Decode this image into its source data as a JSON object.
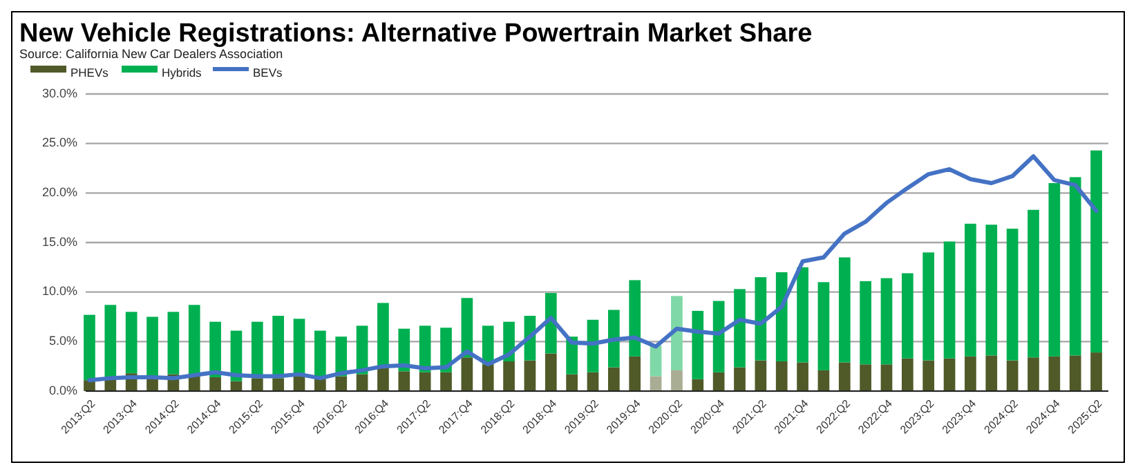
{
  "chart_data": {
    "type": "bar",
    "stacked": true,
    "title": "New Vehicle Registrations:  Alternative Powertrain Market Share",
    "annotations": [
      "Source:  California New Car Dealers Association"
    ],
    "categories": [
      "2013:Q2",
      null,
      "2013:Q4",
      null,
      "2014:Q2",
      null,
      "2014:Q4",
      null,
      "2015:Q2",
      null,
      "2015:Q4",
      null,
      "2016:Q2",
      null,
      "2016:Q4",
      null,
      "2017:Q2",
      null,
      "2017:Q4",
      null,
      "2018:Q2",
      null,
      "2018:Q4",
      null,
      "2019:Q2",
      null,
      "2019:Q4",
      null,
      "2020:Q2",
      null,
      "2020:Q4",
      null,
      "2021:Q2",
      null,
      "2021:Q4",
      null,
      "2022:Q2",
      null,
      "2022:Q4",
      null,
      "2023:Q2",
      null,
      "2023:Q4",
      null,
      "2024:Q2",
      null,
      "2024:Q4",
      null,
      "2025:Q2"
    ],
    "series": [
      {
        "name": "PHEVs",
        "color": "#4f5a28",
        "colors": [
          "#4f5a28",
          "#4f5a28",
          "#4f5a28",
          "#4f5a28",
          "#4f5a28",
          "#4f5a28",
          "#4f5a28",
          "#4f5a28",
          "#4f5a28",
          "#4f5a28",
          "#4f5a28",
          "#4f5a28",
          "#4f5a28",
          "#4f5a28",
          "#4f5a28",
          "#4f5a28",
          "#4f5a28",
          "#4f5a28",
          "#4f5a28",
          "#4f5a28",
          "#4f5a28",
          "#4f5a28",
          "#4f5a28",
          "#4f5a28",
          "#4f5a28",
          "#4f5a28",
          "#4f5a28",
          "#a9ad93",
          "#a9ad93",
          "#4f5a28",
          "#4f5a28",
          "#4f5a28",
          "#4f5a28",
          "#4f5a28",
          "#4f5a28",
          "#4f5a28",
          "#4f5a28",
          "#4f5a28",
          "#4f5a28",
          "#4f5a28",
          "#4f5a28",
          "#4f5a28",
          "#4f5a28",
          "#4f5a28",
          "#4f5a28",
          "#4f5a28",
          "#4f5a28",
          "#4f5a28",
          "#4f5a28"
        ],
        "values": [
          1.1,
          1.2,
          1.8,
          1.5,
          1.7,
          1.5,
          1.4,
          1.0,
          1.3,
          1.3,
          1.5,
          1.2,
          1.5,
          1.7,
          2.3,
          2.0,
          1.9,
          1.9,
          3.4,
          2.7,
          3.0,
          3.1,
          3.8,
          1.7,
          1.9,
          2.4,
          3.5,
          1.5,
          2.1,
          1.2,
          1.9,
          2.4,
          3.1,
          3.0,
          2.9,
          2.1,
          2.9,
          2.7,
          2.7,
          3.3,
          3.1,
          3.3,
          3.5,
          3.6,
          3.1,
          3.4,
          3.5,
          3.6,
          3.9
        ]
      },
      {
        "name": "Hybrids",
        "color": "#00b050",
        "colors": [
          "#00b050",
          "#00b050",
          "#00b050",
          "#00b050",
          "#00b050",
          "#00b050",
          "#00b050",
          "#00b050",
          "#00b050",
          "#00b050",
          "#00b050",
          "#00b050",
          "#00b050",
          "#00b050",
          "#00b050",
          "#00b050",
          "#00b050",
          "#00b050",
          "#00b050",
          "#00b050",
          "#00b050",
          "#00b050",
          "#00b050",
          "#00b050",
          "#00b050",
          "#00b050",
          "#00b050",
          "#7fd8a7",
          "#7fd8a7",
          "#00b050",
          "#00b050",
          "#00b050",
          "#00b050",
          "#00b050",
          "#00b050",
          "#00b050",
          "#00b050",
          "#00b050",
          "#00b050",
          "#00b050",
          "#00b050",
          "#00b050",
          "#00b050",
          "#00b050",
          "#00b050",
          "#00b050",
          "#00b050",
          "#00b050",
          "#00b050"
        ],
        "values": [
          6.6,
          7.5,
          6.2,
          6.0,
          6.3,
          7.2,
          5.6,
          5.1,
          5.7,
          6.3,
          5.8,
          4.9,
          4.0,
          4.9,
          6.6,
          4.3,
          4.7,
          4.5,
          6.0,
          3.9,
          4.0,
          4.5,
          6.1,
          3.8,
          5.3,
          5.8,
          7.7,
          3.1,
          7.5,
          6.9,
          7.2,
          7.9,
          8.4,
          9.0,
          9.6,
          8.9,
          10.6,
          8.4,
          8.7,
          8.6,
          10.9,
          11.8,
          13.4,
          13.2,
          13.3,
          14.9,
          17.5,
          18.0,
          20.4
        ]
      },
      {
        "name": "BEVs",
        "type": "line",
        "color": "#4472c4",
        "values": [
          1.1,
          1.3,
          1.4,
          1.4,
          1.3,
          1.6,
          1.9,
          1.6,
          1.5,
          1.5,
          1.7,
          1.3,
          1.8,
          2.1,
          2.5,
          2.6,
          2.3,
          2.4,
          4.0,
          2.7,
          3.7,
          5.5,
          7.4,
          4.9,
          4.8,
          5.2,
          5.4,
          4.5,
          6.3,
          6.0,
          5.8,
          7.2,
          6.8,
          8.5,
          13.1,
          13.5,
          15.9,
          17.1,
          19.0,
          20.5,
          21.9,
          22.4,
          21.4,
          21.0,
          21.7,
          23.7,
          21.3,
          20.8,
          18.2
        ]
      }
    ],
    "ylim": [
      0,
      30
    ],
    "yticks": [
      {
        "value": 0,
        "label": "0.0%"
      },
      {
        "value": 5,
        "label": "5.0%"
      },
      {
        "value": 10,
        "label": "10.0%"
      },
      {
        "value": 15,
        "label": "15.0%"
      },
      {
        "value": 20,
        "label": "20.0%"
      },
      {
        "value": 25,
        "label": "25.0%"
      },
      {
        "value": 30,
        "label": "30.0%"
      }
    ],
    "grid": "y",
    "legend": "top left",
    "line_style": "solid",
    "marker": "none"
  }
}
